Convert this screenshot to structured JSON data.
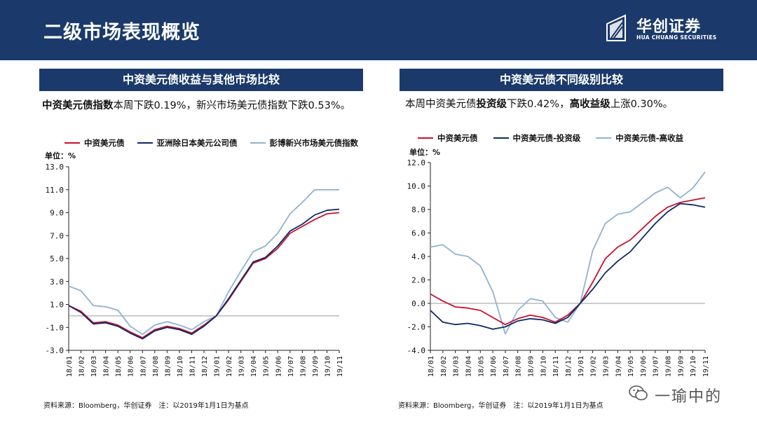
{
  "header": {
    "title": "二级市场表现概览",
    "logo_cn": "华创证券",
    "logo_en": "HUA CHUANG SECURITIES"
  },
  "colors": {
    "navy": "#1b3a6b",
    "red": "#c8102e",
    "darkblue": "#0d2a66",
    "lightblue": "#8fb2d3"
  },
  "left": {
    "section_title": "中资美元债收益与其他市场比较",
    "desc_bold": "中资美元债指数",
    "desc_rest": "本周下跌0.19%，新兴市场美元债指数下跌0.53%。",
    "unit": "单位：%",
    "source": "资料来源：Bloomberg，华创证券　注：以2019年1月1日为基点"
  },
  "right": {
    "section_title": "中资美元债不同级别比较",
    "desc_p1": "本周中资美元债",
    "desc_b1": "投资级",
    "desc_p2": "下跌0.42%，",
    "desc_b2": "高收益级",
    "desc_p3": "上涨0.30%。",
    "unit": "单位：%",
    "source": "资料来源：Bloomberg，华创证券　注：以2019年1月1日为基点"
  },
  "watermark": "一瑜中的",
  "chart_data": [
    {
      "type": "line",
      "x": [
        "18/01",
        "18/02",
        "18/03",
        "18/04",
        "18/05",
        "18/06",
        "18/07",
        "18/08",
        "18/09",
        "18/10",
        "18/11",
        "18/12",
        "19/01",
        "19/02",
        "19/03",
        "19/04",
        "19/05",
        "19/06",
        "19/07",
        "19/08",
        "19/09",
        "19/10",
        "19/11"
      ],
      "tick_labels": [
        "18/01",
        "18/02",
        "18/03",
        "18/04",
        "18/05",
        "18/06",
        "18/07",
        "18/08",
        "18/09",
        "18/10",
        "18/11",
        "18/12",
        "19/01",
        "19/02",
        "19/03",
        "19/04",
        "19/05",
        "19/06",
        "19/07",
        "19/08",
        "19/09",
        "19/10",
        "19/11"
      ],
      "ylim": [
        -3,
        13
      ],
      "yticks": [
        "13.0",
        "11.0",
        "9.0",
        "7.0",
        "5.0",
        "3.0",
        "1.0",
        "-1.0",
        "-3.0"
      ],
      "ytick_values": [
        13,
        11,
        9,
        7,
        5,
        3,
        1,
        -1,
        -3
      ],
      "series": [
        {
          "name": "中资美元债",
          "color": "#c8102e",
          "values": [
            0.9,
            0.4,
            -0.6,
            -0.5,
            -0.8,
            -1.4,
            -1.9,
            -1.2,
            -0.9,
            -1.1,
            -1.5,
            -0.8,
            0.0,
            1.4,
            3.0,
            4.6,
            5.0,
            5.9,
            7.2,
            7.8,
            8.4,
            8.9,
            9.0
          ]
        },
        {
          "name": "亚洲除日本美元公司债",
          "color": "#0d2a66",
          "values": [
            0.9,
            0.3,
            -0.7,
            -0.6,
            -0.9,
            -1.5,
            -2.0,
            -1.3,
            -1.0,
            -1.2,
            -1.6,
            -0.9,
            0.0,
            1.5,
            3.1,
            4.7,
            5.1,
            6.1,
            7.4,
            8.0,
            8.8,
            9.2,
            9.3
          ]
        },
        {
          "name": "彭博新兴市场美元债指数",
          "color": "#8fb2d3",
          "values": [
            2.6,
            2.2,
            0.9,
            0.8,
            0.5,
            -0.9,
            -1.6,
            -0.8,
            -0.5,
            -0.8,
            -1.2,
            -0.5,
            0.0,
            2.1,
            3.9,
            5.6,
            6.1,
            7.2,
            8.9,
            9.9,
            11.0,
            11.0,
            11.0
          ]
        }
      ]
    },
    {
      "type": "line",
      "x": [
        "18/01",
        "18/02",
        "18/03",
        "18/04",
        "18/05",
        "18/06",
        "18/07",
        "18/08",
        "18/09",
        "18/10",
        "18/11",
        "18/12",
        "19/01",
        "19/02",
        "19/03",
        "19/04",
        "19/05",
        "19/06",
        "19/07",
        "19/08",
        "19/09",
        "19/10",
        "19/11"
      ],
      "tick_labels": [
        "18/01",
        "18/02",
        "18/03",
        "18/04",
        "18/05",
        "18/06",
        "18/07",
        "18/08",
        "18/09",
        "18/10",
        "18/11",
        "18/12",
        "19/01",
        "19/02",
        "19/03",
        "19/04",
        "19/05",
        "19/06",
        "19/07",
        "19/08",
        "19/09",
        "19/10",
        "19/11"
      ],
      "ylim": [
        -4,
        12
      ],
      "yticks": [
        "12.0",
        "10.0",
        "8.0",
        "6.0",
        "4.0",
        "2.0",
        "0.0",
        "-2.0",
        "-4.0"
      ],
      "ytick_values": [
        12,
        10,
        8,
        6,
        4,
        2,
        0,
        -2,
        -4
      ],
      "series": [
        {
          "name": "中资美元债",
          "color": "#c8102e",
          "values": [
            0.8,
            0.2,
            -0.3,
            -0.4,
            -0.6,
            -1.2,
            -1.8,
            -1.3,
            -1.0,
            -1.2,
            -1.6,
            -1.0,
            0.0,
            1.8,
            3.8,
            4.8,
            5.4,
            6.4,
            7.4,
            8.2,
            8.6,
            8.8,
            9.0
          ]
        },
        {
          "name": "中资美元债-投资级",
          "color": "#0d2a66",
          "values": [
            -0.6,
            -1.6,
            -1.8,
            -1.7,
            -1.9,
            -2.2,
            -2.0,
            -1.5,
            -1.3,
            -1.4,
            -1.7,
            -1.2,
            0.0,
            1.2,
            2.6,
            3.6,
            4.4,
            5.6,
            6.8,
            7.8,
            8.5,
            8.4,
            8.2
          ]
        },
        {
          "name": "中资美元债-高收益",
          "color": "#8fb2d3",
          "values": [
            4.8,
            5.0,
            4.2,
            4.0,
            3.2,
            1.0,
            -2.6,
            -0.6,
            0.4,
            0.2,
            -1.2,
            -1.6,
            0.0,
            4.5,
            6.8,
            7.6,
            7.8,
            8.6,
            9.4,
            9.9,
            9.0,
            9.8,
            11.2
          ]
        }
      ]
    }
  ]
}
